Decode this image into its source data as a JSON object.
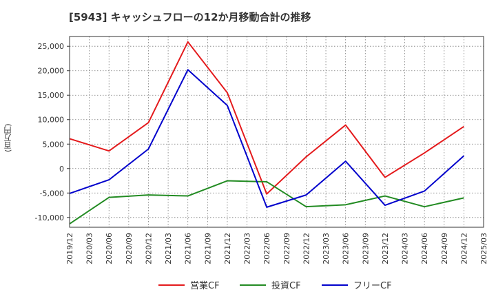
{
  "chart_data": {
    "type": "line",
    "title": "[5943]  キャッシュフローの12か月移動合計の推移",
    "ylabel": "(百万円)",
    "xlabel": "",
    "ylim": [
      -12000,
      27000
    ],
    "yticks": [
      -10000,
      -5000,
      0,
      5000,
      10000,
      15000,
      20000,
      25000
    ],
    "ytick_labels": [
      "-10,000",
      "-5,000",
      "0",
      "5,000",
      "10,000",
      "15,000",
      "20,000",
      "25,000"
    ],
    "xticks": [
      "2019/12",
      "2020/03",
      "2020/06",
      "2020/09",
      "2020/12",
      "2021/03",
      "2021/06",
      "2021/09",
      "2021/12",
      "2022/03",
      "2022/06",
      "2022/09",
      "2022/12",
      "2023/03",
      "2023/06",
      "2023/09",
      "2023/12",
      "2024/03",
      "2024/06",
      "2024/09",
      "2024/12",
      "2025/03"
    ],
    "grid": true,
    "legend_position": "bottom",
    "x": [
      "2019/12",
      "2020/06",
      "2020/12",
      "2021/06",
      "2021/12",
      "2022/06",
      "2022/12",
      "2023/06",
      "2023/12",
      "2024/06",
      "2024/12"
    ],
    "series": [
      {
        "name": "営業CF",
        "color": "#e41a1c",
        "values": [
          6100,
          3600,
          9400,
          25900,
          15500,
          -5200,
          2400,
          8900,
          -1800,
          3200,
          8600
        ]
      },
      {
        "name": "投資CF",
        "color": "#228b22",
        "values": [
          -11300,
          -5900,
          -5400,
          -5600,
          -2500,
          -2700,
          -7800,
          -7400,
          -5600,
          -7800,
          -6000
        ]
      },
      {
        "name": "フリーCF",
        "color": "#0000cc",
        "values": [
          -5100,
          -2300,
          4000,
          20200,
          12900,
          -7900,
          -5400,
          1500,
          -7500,
          -4600,
          2600
        ]
      }
    ]
  }
}
